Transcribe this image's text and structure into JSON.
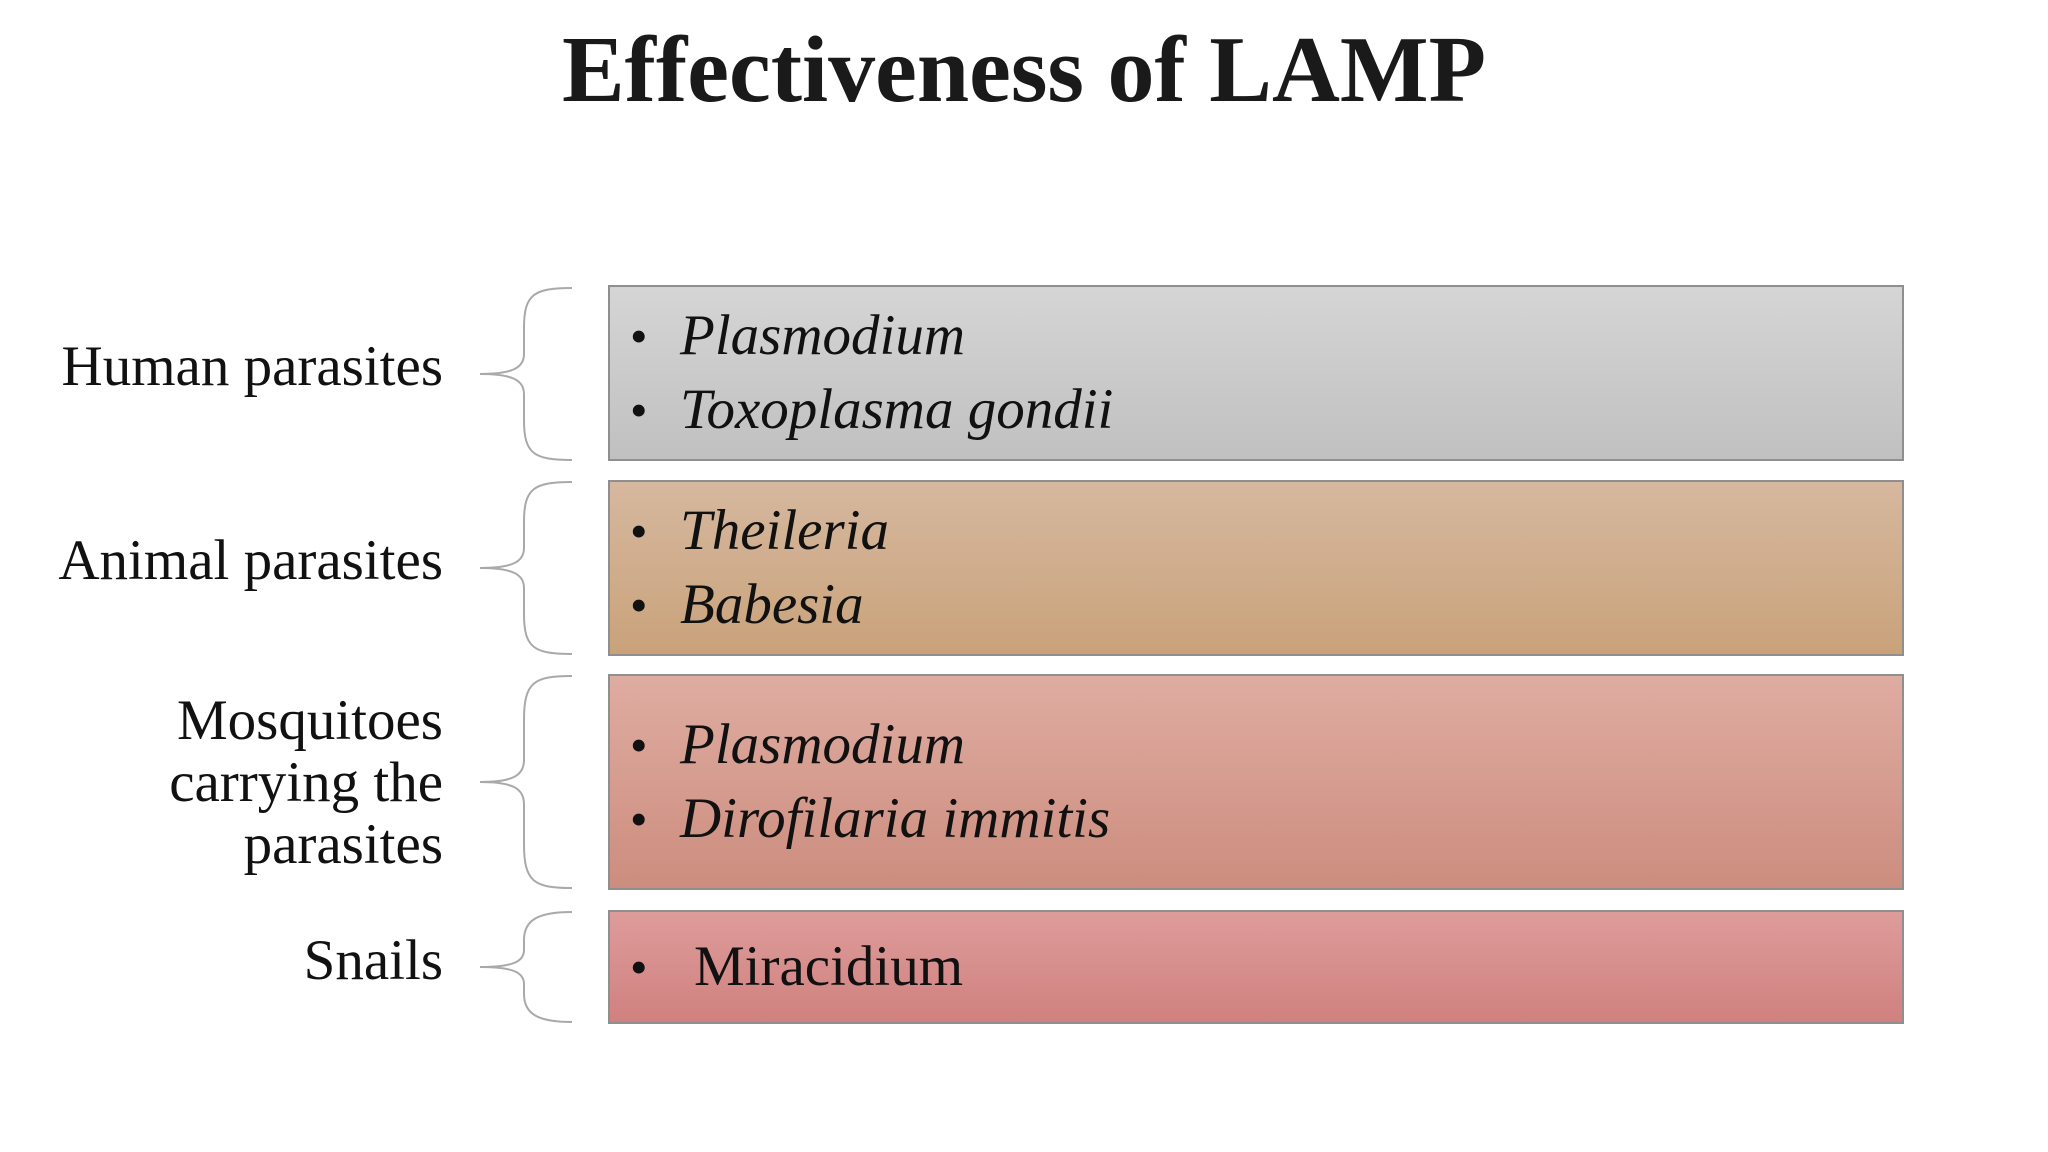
{
  "title": "Effectiveness of LAMP",
  "rows": [
    {
      "label_lines": [
        "Human parasites"
      ],
      "items": [
        "Plasmodium",
        "Toxoplasma gondii"
      ],
      "color": "#cdcccd"
    },
    {
      "label_lines": [
        "Animal parasites"
      ],
      "items": [
        "Theileria",
        "Babesia"
      ],
      "color": "#cfad8c"
    },
    {
      "label_lines": [
        "Mosquitoes",
        "carrying the",
        "parasites"
      ],
      "items": [
        "Plasmodium",
        "Dirofilaria immitis"
      ],
      "color": "#d69c8f"
    },
    {
      "label_lines": [
        "Snails"
      ],
      "items": [
        "Miracidium"
      ],
      "color": "#d78f8d"
    }
  ],
  "bullet_glyph": "•"
}
